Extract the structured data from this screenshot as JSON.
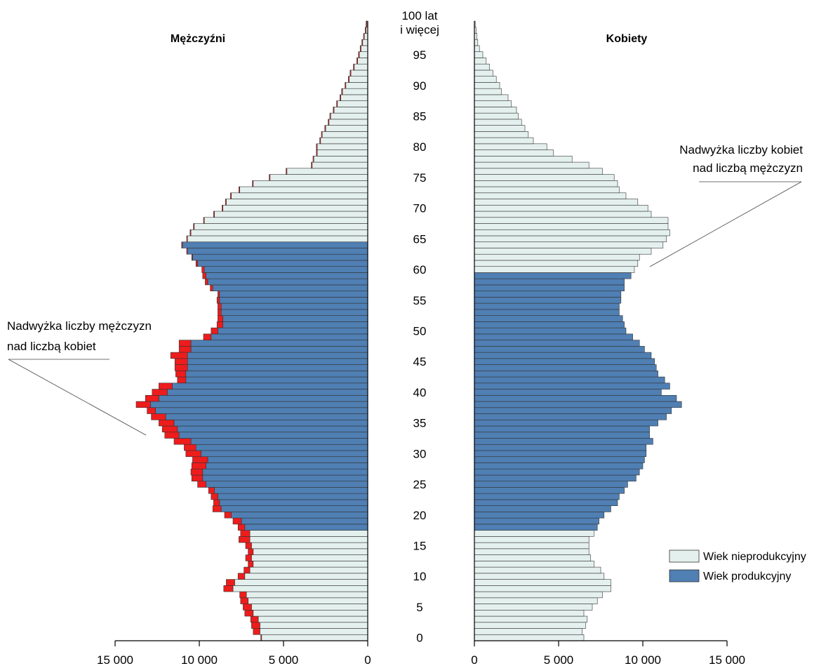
{
  "chart_data": {
    "type": "bar",
    "orientation": "horizontal",
    "subtype": "population-pyramid",
    "grid": false,
    "legend_position": "bottom-right",
    "panels": {
      "left": {
        "title": "Mężczyźni",
        "xlim": [
          0,
          15000
        ]
      },
      "right": {
        "title": "Kobiety",
        "xlim": [
          0,
          15000
        ]
      }
    },
    "age_labels": [
      "0",
      "5",
      "10",
      "15",
      "20",
      "25",
      "30",
      "35",
      "40",
      "45",
      "50",
      "55",
      "60",
      "65",
      "70",
      "75",
      "80",
      "85",
      "90",
      "95"
    ],
    "top_age_label": [
      "100 lat",
      "i więcej"
    ],
    "x_ticks_left": [
      "15 000",
      "10 000",
      "5 000",
      "0"
    ],
    "x_ticks_right": [
      "0",
      "5 000",
      "10 000",
      "15 000"
    ],
    "legend": [
      {
        "label": "Wiek nieprodukcyjny",
        "color": "#e4f0ee"
      },
      {
        "label": "Wiek produkcyjny",
        "color": "#4f7fb3"
      }
    ],
    "annotations": {
      "men_surplus": [
        "Nadwyżka liczby mężczyzn",
        "nad liczbą kobiet"
      ],
      "women_surplus": [
        "Nadwyżka liczby kobiet",
        "nad liczbą mężczyzn"
      ]
    },
    "productive_age_men": [
      18,
      64
    ],
    "productive_age_women": [
      18,
      59
    ],
    "colors": {
      "nonproductive": "#e4f0ee",
      "productive": "#4f7fb3",
      "surplus": "#ee1c1c",
      "outline": "#333333"
    },
    "men": [
      6300,
      6400,
      6400,
      6500,
      6800,
      6900,
      7100,
      7200,
      8000,
      7900,
      7300,
      7000,
      6800,
      6900,
      6800,
      6900,
      7000,
      7000,
      7300,
      7500,
      8100,
      8700,
      8800,
      8900,
      9100,
      9600,
      9800,
      9800,
      9600,
      9500,
      9900,
      10200,
      10500,
      11200,
      11300,
      11500,
      12000,
      12600,
      12900,
      12400,
      11900,
      11600,
      10800,
      10800,
      10700,
      10700,
      10700,
      10500,
      10500,
      9300,
      8900,
      8600,
      8600,
      8700,
      8700,
      8800,
      8800,
      9200,
      9500,
      9600,
      9700,
      10100,
      10400,
      10700,
      11000,
      10700,
      10500,
      10300,
      9700,
      9100,
      8600,
      8400,
      8100,
      7600,
      6800,
      5800,
      4800,
      3300,
      3200,
      3000,
      3000,
      2800,
      2700,
      2500,
      2300,
      2200,
      2000,
      1800,
      1600,
      1500,
      1300,
      1100,
      1000,
      800,
      600,
      500,
      400,
      300,
      200,
      100,
      50
    ],
    "women": [
      6500,
      6400,
      6600,
      6700,
      6500,
      7000,
      7300,
      7600,
      8100,
      8100,
      7700,
      7500,
      7100,
      6900,
      6800,
      6800,
      6800,
      7100,
      7300,
      7400,
      7700,
      8100,
      8500,
      8600,
      8900,
      9100,
      9600,
      9800,
      10000,
      10100,
      10200,
      10200,
      10600,
      10400,
      10400,
      10900,
      11400,
      11700,
      12300,
      12000,
      11100,
      11600,
      11300,
      10900,
      10800,
      10700,
      10500,
      10100,
      9800,
      9400,
      9000,
      8900,
      8800,
      8600,
      8600,
      8700,
      8700,
      8900,
      8900,
      9300,
      9500,
      9700,
      9800,
      10500,
      11200,
      11400,
      11600,
      11500,
      11500,
      10500,
      10300,
      9700,
      9000,
      8600,
      8500,
      8300,
      7600,
      6800,
      5800,
      4700,
      4300,
      3500,
      3200,
      3000,
      2800,
      2600,
      2500,
      2200,
      2000,
      1600,
      1500,
      1300,
      1100,
      900,
      700,
      500,
      300,
      200,
      150,
      100,
      50
    ],
    "men_surplus": [
      50,
      400,
      500,
      450,
      500,
      500,
      450,
      400,
      550,
      500,
      400,
      350,
      300,
      350,
      300,
      350,
      650,
      550,
      400,
      500,
      400,
      500,
      350,
      400,
      350,
      500,
      650,
      700,
      850,
      900,
      900,
      700,
      1000,
      850,
      900,
      900,
      850,
      500,
      850,
      800,
      900,
      800,
      500,
      600,
      750,
      750,
      1000,
      700,
      700,
      450,
      400,
      350,
      300,
      200,
      200,
      150,
      100,
      150,
      150,
      200,
      150,
      100,
      50,
      50,
      50,
      50,
      50,
      50,
      50,
      50,
      50,
      50,
      50,
      50,
      50,
      50,
      50,
      50,
      50,
      50,
      50,
      50,
      50,
      50,
      50,
      50,
      50,
      50,
      50,
      50,
      50,
      50,
      50,
      50,
      50,
      50,
      50,
      50,
      50,
      50,
      50
    ],
    "women_surplus": [
      0,
      0,
      0,
      0,
      0,
      0,
      0,
      0,
      0,
      0,
      0,
      0,
      0,
      0,
      0,
      0,
      0,
      0,
      0,
      0,
      0,
      0,
      0,
      0,
      0,
      0,
      0,
      0,
      0,
      0,
      0,
      0,
      0,
      0,
      0,
      0,
      0,
      0,
      0,
      0,
      0,
      0,
      0,
      0,
      0,
      0,
      0,
      0,
      0,
      0,
      0,
      0,
      0,
      0,
      0,
      0,
      0,
      0,
      0,
      0,
      0,
      0,
      0,
      0,
      0,
      0,
      0,
      0,
      0,
      0,
      0,
      0,
      0,
      0,
      0,
      0,
      0,
      0,
      0,
      0,
      0,
      0,
      0,
      0,
      0,
      0,
      0,
      0,
      0,
      0,
      0,
      0,
      0,
      0,
      0,
      0,
      0,
      0,
      0,
      0,
      0,
      0,
      0,
      0,
      0,
      0,
      0,
      0,
      0,
      0,
      0,
      0,
      0,
      0,
      0,
      0,
      0,
      0,
      0,
      0,
      0,
      0,
      0,
      0,
      0,
      0,
      0,
      0
    ]
  }
}
